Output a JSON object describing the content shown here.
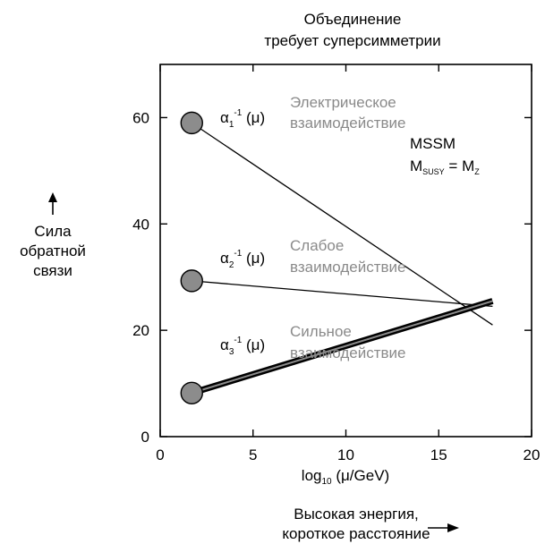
{
  "chart_data": {
    "type": "line",
    "title": [
      "Объединение",
      "требует суперсимметрии"
    ],
    "xlabel": "log₁₀ (μ/GeV)",
    "xlabel_parts": {
      "pre": "log",
      "sub": "10",
      "post": " (μ/GeV)"
    },
    "ylabel": [
      "Сила",
      "обратной",
      "связи"
    ],
    "bottom_caption": [
      "Высокая энергия,",
      "короткое расстояние"
    ],
    "xlim": [
      0,
      20
    ],
    "ylim": [
      0,
      70
    ],
    "xticks": [
      0,
      5,
      10,
      15,
      20
    ],
    "yticks": [
      0,
      20,
      40,
      60
    ],
    "grid": false,
    "annotation": {
      "line1": "MSSM",
      "line2": {
        "base": "M",
        "sub": "SUSY",
        "eq": " = ",
        "base2": "M",
        "sub2": "Z"
      }
    },
    "series": [
      {
        "symbol": {
          "greek": "α",
          "sub": "1",
          "sup": "-1",
          "arg": " (μ)"
        },
        "label": [
          "Электрическое",
          "взаимодействие"
        ],
        "x": [
          1.7,
          17.9
        ],
        "y": [
          59.0,
          21.0
        ],
        "start_marker": true,
        "band": false
      },
      {
        "symbol": {
          "greek": "α",
          "sub": "2",
          "sup": "-1",
          "arg": " (μ)"
        },
        "label": [
          "Слабое",
          "взаимодействие"
        ],
        "x": [
          1.7,
          17.9
        ],
        "y": [
          29.3,
          24.5
        ],
        "start_marker": true,
        "band": false
      },
      {
        "symbol": {
          "greek": "α",
          "sub": "3",
          "sup": "-1",
          "arg": " (μ)"
        },
        "label": [
          "Сильное",
          "взаимодействие"
        ],
        "x": [
          1.7,
          17.9
        ],
        "y": [
          8.2,
          25.5
        ],
        "start_marker": true,
        "band": true
      }
    ],
    "colors": {
      "line": "#000000",
      "marker_fill": "#8c8c8c",
      "label_gray": "#8a8a8a"
    }
  }
}
